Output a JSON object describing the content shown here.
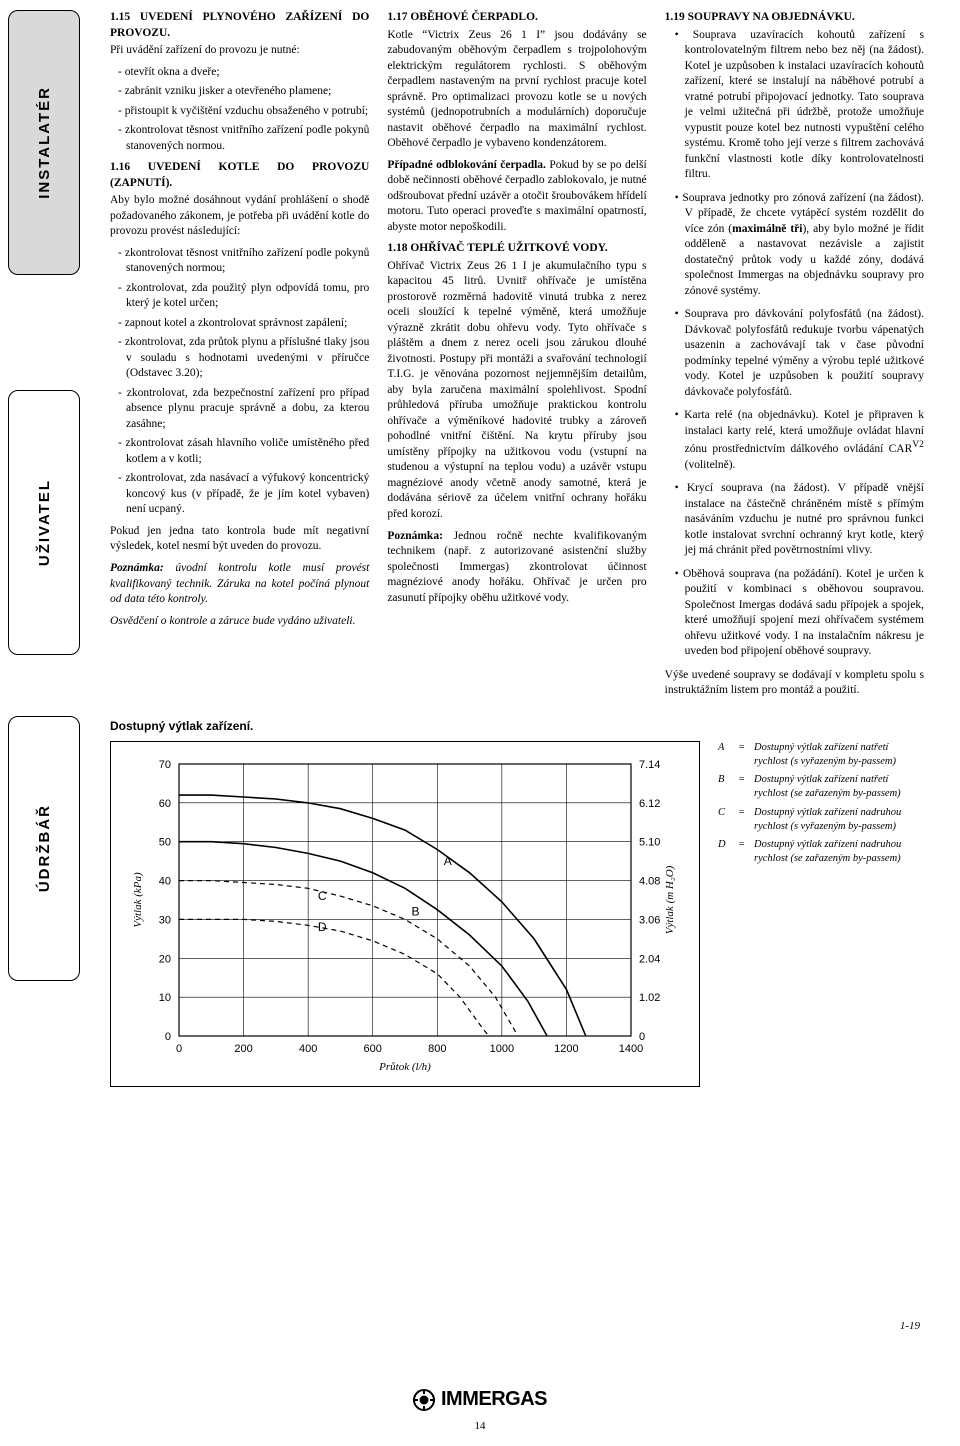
{
  "tabs": {
    "installer": "INSTALATÉR",
    "user": "UŽIVATEL",
    "maint": "ÚDRŽBÁŘ"
  },
  "col1": {
    "h1": "1.15 UVEDENÍ PLYNOVÉHO ZAŘÍZENÍ DO PROVOZU.",
    "p1": "Při uvádění zařízení do provozu je nutné:",
    "l1": [
      "otevřít okna a dveře;",
      "zabránit vzniku jisker a otevřeného plamene;",
      "přistoupit k vyčištění vzduchu obsaženého v potrubí;",
      "zkontrolovat těsnost vnitřního zařízení podle pokynů stanovených normou."
    ],
    "h2": "1.16 UVEDENÍ KOTLE DO PROVOZU (ZAPNUTÍ).",
    "p2": "Aby bylo možné dosáhnout vydání prohlášení o shodě požadovaného zákonem, je potřeba při uvádění kotle do provozu provést následující:",
    "l2": [
      "zkontrolovat těsnost vnitřního zařízení podle pokynů stanovených normou;",
      "zkontrolovat, zda použitý plyn odpovídá tomu, pro který je kotel určen;",
      "zapnout kotel a zkontrolovat správnost zapálení;",
      "zkontrolovat, zda průtok plynu a příslušné tlaky jsou v souladu s hodnotami uvedenými v příručce (Odstavec 3.20);",
      "zkontrolovat, zda bezpečnostní zařízení pro případ absence plynu pracuje správně a dobu, za kterou zasáhne;",
      "zkontrolovat zásah hlavního voliče umístěného před kotlem a v kotli;",
      "zkontrolovat, zda nasávací a výfukový koncentrický koncový kus (v případě, že je jím kotel vybaven) není ucpaný."
    ],
    "p3": "Pokud jen jedna tato kontrola bude mít negativní výsledek, kotel nesmí být uveden do provozu.",
    "p4a": "Poznámka:",
    "p4b": " úvodní kontrolu kotle musí provést kvalifikovaný technik. Záruka na kotel počíná plynout od data této kontroly.",
    "p5": "Osvědčení o kontrole a záruce bude vydáno uživateli."
  },
  "col2": {
    "h1": "1.17 OBĚHOVÉ ČERPADLO.",
    "p1": "Kotle “Victrix Zeus 26 1 I” jsou dodávány se zabudovaným oběhovým čerpadlem s trojpolohovým elektrickým regulátorem rychlosti. S oběhovým čerpadlem nastaveným na první rychlost pracuje kotel správně. Pro optimalizaci provozu kotle se u nových systémů (jednopotrubních a modulárních) doporučuje nastavit oběhové čerpadlo na maximální rychlost. Oběhové čerpadlo je vybaveno kondenzátorem.",
    "p2a": "Případné odblokování čerpadla.",
    "p2b": " Pokud by se po delší době nečinnosti oběhové čerpadlo zablokovalo, je nutné odšroubovat přední uzávěr a otočit šroubovákem hřídelí motoru. Tuto operaci proveďte s maximální opatrností, abyste motor nepoškodili.",
    "h2": "1.18 OHŘÍVAČ TEPLÉ UŽITKOVÉ VODY.",
    "p3": "Ohřívač Victrix Zeus 26 1 I je akumulačního typu s kapacitou 45 litrů. Uvnitř ohřívače je umístěna prostorově rozměrná hadovitě vinutá trubka z nerez oceli sloužící k tepelné výměně, která umožňuje výrazně zkrátit dobu ohřevu vody. Tyto ohřívače s pláštěm a dnem z nerez oceli jsou zárukou dlouhé životnosti. Postupy při montáži a svařování technologií T.I.G. je věnována pozornost nejjemnějším detailům, aby byla zaručena maximální spolehlivost. Spodní průhledová příruba umožňuje praktickou kontrolu ohřívače a výměníkové hadovité trubky a zároveň pohodlné vnitřní čištění. Na krytu příruby jsou umístěny přípojky na užitkovou vodu (vstupní na studenou a výstupní na teplou vodu) a uzávěr vstupu magnéziové anody včetně anody samotné, která je dodávána sériově za účelem vnitřní ochrany hořáku před korozí.",
    "p4a": "Poznámka:",
    "p4b": " Jednou ročně nechte kvalifikovaným technikem (např. z autorizované asistenční služby společnosti Immergas) zkontrolovat účinnost magnéziové anody hořáku. Ohřívač je určen pro zasunutí přípojky oběhu užitkové vody."
  },
  "col3": {
    "h1": "1.19 SOUPRAVY NA OBJEDNÁVKU.",
    "b": [
      "Souprava uzavíracích kohoutů zařízení s kontrolovatelným filtrem nebo bez něj (na žádost). Kotel je uzpůsoben k instalaci uzavíracích kohoutů zařízení, které se instalují na náběhové potrubí a vratné potrubí připojovací jednotky. Tato souprava je velmi užitečná při údržbě, protože umožňuje vypustit pouze kotel bez nutnosti vypuštění celého systému. Kromě toho její verze s filtrem zachovává funkční vlastnosti kotle díky kontrolovatelnosti filtru.",
      "Souprava jednotky pro zónová zařízení (na žádost). V případě, že chcete vytápěcí systém rozdělit do více zón (<span class=\"bold\">maximálně tři</span>), aby bylo možné je řídit odděleně a nastavovat nezávisle a zajistit dostatečný průtok vody u každé zóny, dodává společnost Immergas na objednávku soupravy pro zónové systémy.",
      "Souprava pro dávkování polyfosfátů (na žádost). Dávkovač polyfosfátů redukuje tvorbu vápenatých usazenin a zachovávají tak v čase původní podmínky tepelné výměny a výrobu teplé užitkové vody. Kotel je uzpůsoben k použití soupravy dávkovače polyfosfátů.",
      "Karta relé (na objednávku). Kotel je připraven k instalaci karty relé, která umožňuje ovládat hlavní zónu prostřednictvím dálkového ovládání CAR<sup>V2</sup> (volitelně).",
      "Krycí souprava (na žádost). V případě vnější instalace na částečně chráněném místě s přímým nasáváním vzduchu je nutné pro správnou funkci kotle instalovat svrchní ochranný kryt kotle, který jej má chránit před povětrnostními vlivy.",
      "Oběhová souprava (na požádání). Kotel je určen k použití v kombinaci s oběhovou soupravou. Společnost Imergas dodává sadu přípojek a spojek, které umožňují spojení mezi ohřívačem systémem ohřevu užitkové vody. I na instalačním nákresu je uveden bod připojení oběhové soupravy."
    ],
    "p_last": "Výše uvedené soupravy se dodávají v kompletu spolu s instruktážním listem pro montáž a použití."
  },
  "chart": {
    "title": "Dostupný výtlak zařízení.",
    "type": "line",
    "x_label": "Průtok (l/h)",
    "y_label_left": "Výtlak (kPa)",
    "y_label_right": "Výtlak (m H₂O)",
    "xlim": [
      0,
      1400
    ],
    "ylim_left": [
      0,
      70
    ],
    "ylim_right": [
      0,
      7.14
    ],
    "xticks": [
      0,
      200,
      400,
      600,
      800,
      1000,
      1200,
      1400
    ],
    "yticks_left": [
      0,
      10,
      20,
      30,
      40,
      50,
      60,
      70
    ],
    "yticks_right": [
      0,
      1.02,
      2.04,
      3.06,
      4.08,
      5.1,
      6.12,
      7.14
    ],
    "series_colors": {
      "A": "#000000",
      "B": "#000000",
      "C": "#000000",
      "D": "#000000"
    },
    "grid_color": "#000000",
    "background_color": "#ffffff",
    "line_width_solid": 1.6,
    "line_width_dashed": 1.2,
    "dash_pattern": "5,4",
    "curve_labels": {
      "A": "A",
      "B": "B",
      "C": "C",
      "D": "D"
    },
    "series": {
      "A": [
        [
          0,
          62
        ],
        [
          100,
          62
        ],
        [
          200,
          61.5
        ],
        [
          300,
          61
        ],
        [
          400,
          60
        ],
        [
          500,
          58.5
        ],
        [
          600,
          56
        ],
        [
          700,
          53
        ],
        [
          800,
          48
        ],
        [
          900,
          42
        ],
        [
          1000,
          34.5
        ],
        [
          1100,
          25
        ],
        [
          1200,
          12
        ],
        [
          1260,
          0
        ]
      ],
      "B": [
        [
          0,
          50
        ],
        [
          100,
          50
        ],
        [
          200,
          49.5
        ],
        [
          300,
          48.5
        ],
        [
          400,
          47
        ],
        [
          500,
          45
        ],
        [
          600,
          42
        ],
        [
          700,
          38
        ],
        [
          800,
          32.5
        ],
        [
          900,
          26
        ],
        [
          1000,
          18
        ],
        [
          1080,
          9
        ],
        [
          1140,
          0
        ]
      ],
      "C": [
        [
          0,
          40
        ],
        [
          100,
          40
        ],
        [
          200,
          39.5
        ],
        [
          300,
          39
        ],
        [
          400,
          38
        ],
        [
          500,
          36
        ],
        [
          600,
          33.5
        ],
        [
          700,
          30
        ],
        [
          800,
          25
        ],
        [
          900,
          18
        ],
        [
          980,
          10
        ],
        [
          1050,
          0
        ]
      ],
      "D": [
        [
          0,
          30
        ],
        [
          100,
          30
        ],
        [
          200,
          30
        ],
        [
          300,
          29.5
        ],
        [
          400,
          28.5
        ],
        [
          500,
          27
        ],
        [
          600,
          24.5
        ],
        [
          700,
          21
        ],
        [
          800,
          16
        ],
        [
          870,
          10
        ],
        [
          940,
          2
        ],
        [
          960,
          0
        ]
      ]
    },
    "legend": [
      {
        "k": "A",
        "t": "Dostupný výtlak zařízení natřetí rychlost (s vyřazeným by-passem)"
      },
      {
        "k": "B",
        "t": "Dostupný výtlak zařízení natřetí rychlost (se zařazeným by-passem)"
      },
      {
        "k": "C",
        "t": "Dostupný výtlak zařízení nadruhou rychlost (s vyřazeným by-passem)"
      },
      {
        "k": "D",
        "t": "Dostupný výtlak zařízení nadruhou rychlost (se zařazeným by-passem)"
      }
    ]
  },
  "footer": {
    "brand": "IMMERGAS",
    "page": "14",
    "ref": "1-19"
  }
}
